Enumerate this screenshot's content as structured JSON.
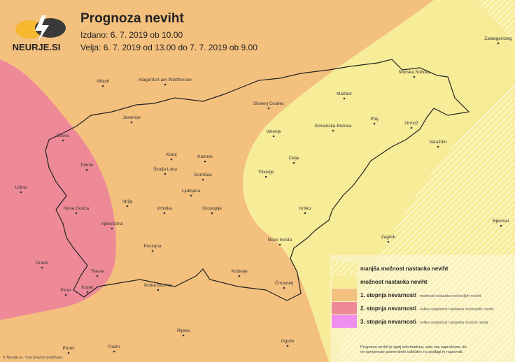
{
  "logo": {
    "text": "NEURJE.SI"
  },
  "header": {
    "title": "Prognoza neviht",
    "issued": "Izdano: 6. 7. 2019 ob 10.00",
    "valid": "Velja: 6. 7. 2019 od 13.00 do 7. 7. 2019 ob 9.00"
  },
  "cities": [
    "Villach",
    "Klagenfurt am Wörthersee",
    "Zalaegerszeg",
    "Murska Sobota",
    "Maribor",
    "Slovenj Gradec",
    "Jesenice",
    "Ptuj",
    "Ormož",
    "Slovenska Bistrica",
    "Velenje",
    "Bovec",
    "Varaždin",
    "Kranj",
    "Kamnik",
    "Celje",
    "Tolmin",
    "Škofja Loka",
    "Domžale",
    "Trbovlje",
    "Udine",
    "Ljubljana",
    "Idrija",
    "Nova Gorica",
    "Vrhnika",
    "Grosuplje",
    "Krško",
    "Ajdovščina",
    "Bjelovar",
    "Zagreb",
    "Novo mesto",
    "Postojna",
    "Grado",
    "Trieste",
    "Kočevje",
    "Koper",
    "Piran",
    "Ilirska Bistrica",
    "Črnomelj",
    "Rijeka",
    "Poreč",
    "Pazin",
    "Ogulin"
  ],
  "legend": {
    "items": [
      {
        "label": "manjša možnost nastanka neviht"
      },
      {
        "label": "možnost nastanka neviht"
      },
      {
        "label": "1. stopnja nevarnosti",
        "description": " - možnost nastanka močnejših neviht"
      },
      {
        "label": "2. stopnja nevarnosti",
        "description": " - velika verjetnost nastanka močnejših neviht"
      },
      {
        "label": "3. stopnja nevarnosti",
        "description": " - velika verjetnost nastanka močnih neurij"
      }
    ],
    "disclaimer": "Prognoza neviht je zgolj informativna, zato vas naprošamo, da ne sprejemate pomembnih odločitev na podlagi te napovedi."
  },
  "footer": "© Neurje.si - Vse pravice pridržane."
}
